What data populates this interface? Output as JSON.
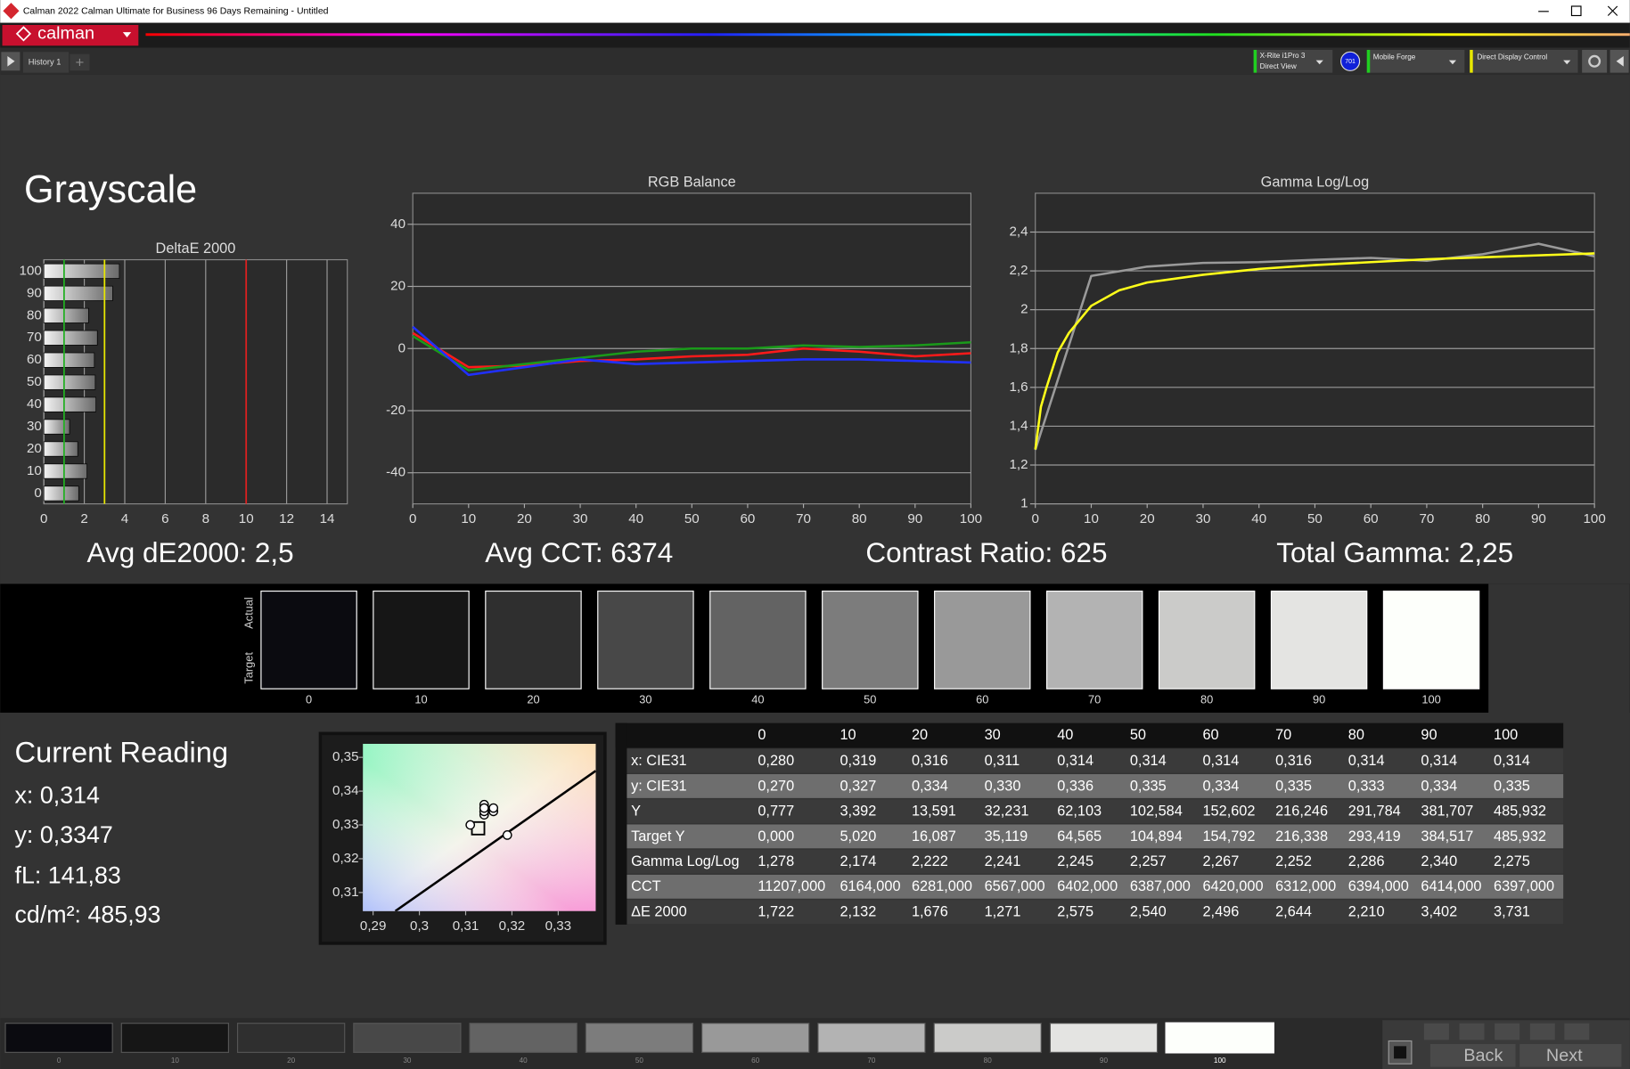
{
  "window": {
    "title": "Calman 2022 Calman Ultimate for Business 96 Days Remaining  - Untitled"
  },
  "toolbar": {
    "logo": "calman",
    "tab": "History 1",
    "meter": "X-Rite i1Pro 3",
    "meter_mode": "Direct View",
    "badge": "701",
    "source": "Mobile Forge",
    "display": "Direct Display Control"
  },
  "heading": "Grayscale",
  "chart_data": [
    {
      "type": "bar",
      "title": "DeltaE 2000",
      "categories": [
        "0",
        "10",
        "20",
        "30",
        "40",
        "50",
        "60",
        "70",
        "80",
        "90",
        "100"
      ],
      "values": [
        1.722,
        2.132,
        1.676,
        1.271,
        2.575,
        2.54,
        2.496,
        2.644,
        2.21,
        3.402,
        3.731
      ],
      "xlim": [
        0,
        15
      ],
      "xticks": [
        0,
        2,
        4,
        6,
        8,
        10,
        12,
        14
      ],
      "grid": true,
      "reference_lines": [
        {
          "value": 1,
          "color": "#22b022"
        },
        {
          "value": 3,
          "color": "#e8e800"
        },
        {
          "value": 10,
          "color": "#e02020"
        }
      ]
    },
    {
      "type": "line",
      "title": "RGB Balance",
      "x": [
        0,
        10,
        20,
        30,
        40,
        50,
        60,
        70,
        80,
        90,
        100
      ],
      "series": [
        {
          "color": "#ff1a1a",
          "values": [
            5,
            -6,
            -5.5,
            -4,
            -3.5,
            -2.5,
            -2,
            0,
            -1,
            -2.5,
            -1.5
          ]
        },
        {
          "color": "#1a9a1a",
          "values": [
            4,
            -7,
            -5,
            -3,
            -1,
            0,
            0,
            1,
            0.5,
            1,
            2
          ]
        },
        {
          "color": "#2030ff",
          "values": [
            7,
            -8.5,
            -6,
            -3.5,
            -5,
            -4.5,
            -4,
            -3.5,
            -3.5,
            -4,
            -4.5
          ]
        }
      ],
      "xlim": [
        0,
        100
      ],
      "xticks": [
        0,
        10,
        20,
        30,
        40,
        50,
        60,
        70,
        80,
        90,
        100
      ],
      "ylim": [
        -50,
        50
      ],
      "yticks": [
        -40,
        -20,
        0,
        20,
        40
      ],
      "grid": true
    },
    {
      "type": "line",
      "title": "Gamma Log/Log",
      "series": [
        {
          "color": "#9a9a9a",
          "x": [
            0,
            10,
            20,
            30,
            40,
            50,
            60,
            70,
            80,
            90,
            100
          ],
          "values": [
            1.278,
            2.174,
            2.222,
            2.241,
            2.245,
            2.257,
            2.267,
            2.252,
            2.286,
            2.34,
            2.275
          ]
        },
        {
          "color": "#ffff1a",
          "x": [
            0,
            1,
            2,
            4,
            6,
            8,
            10,
            15,
            20,
            30,
            40,
            50,
            60,
            70,
            80,
            90,
            100
          ],
          "values": [
            1.28,
            1.5,
            1.6,
            1.78,
            1.88,
            1.95,
            2.02,
            2.1,
            2.14,
            2.18,
            2.21,
            2.23,
            2.245,
            2.26,
            2.27,
            2.28,
            2.29
          ]
        }
      ],
      "xlim": [
        0,
        100
      ],
      "xticks": [
        0,
        10,
        20,
        30,
        40,
        50,
        60,
        70,
        80,
        90,
        100
      ],
      "ylim": [
        1,
        2.6
      ],
      "yticks": [
        1,
        {
          "value": 1.2,
          "label": "1,2"
        },
        {
          "value": 1.4,
          "label": "1,4"
        },
        {
          "value": 1.6,
          "label": "1,6"
        },
        {
          "value": 1.8,
          "label": "1,8"
        },
        2,
        {
          "value": 2.2,
          "label": "2,2"
        },
        {
          "value": 2.4,
          "label": "2,4"
        }
      ],
      "grid": true
    },
    {
      "type": "scatter",
      "xlim": [
        0.2878,
        0.3381
      ],
      "xticks": [
        {
          "value": 0.29,
          "label": "0,29"
        },
        {
          "value": 0.3,
          "label": "0,3"
        },
        {
          "value": 0.31,
          "label": "0,31"
        },
        {
          "value": 0.32,
          "label": "0,32"
        },
        {
          "value": 0.33,
          "label": "0,33"
        }
      ],
      "ylim": [
        0.3045,
        0.354
      ],
      "yticks": [
        {
          "value": 0.31,
          "label": "0,31"
        },
        {
          "value": 0.32,
          "label": "0,32"
        },
        {
          "value": 0.33,
          "label": "0,33"
        },
        {
          "value": 0.34,
          "label": "0,34"
        },
        {
          "value": 0.35,
          "label": "0,35"
        }
      ],
      "series": [
        {
          "marker": "line",
          "color": "#000000",
          "x": [
            0.2948,
            0.3381
          ],
          "values": [
            0.3045,
            0.346
          ]
        },
        {
          "marker": "square",
          "color": "#000000",
          "x": [
            0.3127
          ],
          "values": [
            0.329
          ]
        },
        {
          "marker": "circle",
          "color": "#ffffff",
          "x": [
            0.319,
            0.316,
            0.311,
            0.314,
            0.314,
            0.314,
            0.316,
            0.314,
            0.314,
            0.314
          ],
          "values": [
            0.327,
            0.334,
            0.33,
            0.336,
            0.335,
            0.334,
            0.335,
            0.333,
            0.334,
            0.335
          ]
        }
      ]
    }
  ],
  "metrics": [
    "Avg dE2000: 2,5",
    "Avg CCT: 6374",
    "Contrast Ratio: 625",
    "Total Gamma: 2,25"
  ],
  "swatches": {
    "actual_label": "Actual",
    "target_label": "Target",
    "labels": [
      "0",
      "10",
      "20",
      "30",
      "40",
      "50",
      "60",
      "70",
      "80",
      "90",
      "100"
    ],
    "colors": [
      "#0b0b10",
      "#161616",
      "#2f2f2f",
      "#484848",
      "#636363",
      "#7c7c7c",
      "#999999",
      "#b3b3b3",
      "#cbcbc9",
      "#e4e4e2",
      "#fdfffb"
    ]
  },
  "current_reading": {
    "title": "Current Reading",
    "lines": [
      "x: 0,314",
      "y: 0,3347",
      "fL: 141,83",
      "cd/m²: 485,93"
    ]
  },
  "table": {
    "header": [
      "0",
      "10",
      "20",
      "30",
      "40",
      "50",
      "60",
      "70",
      "80",
      "90",
      "100"
    ],
    "rows": [
      {
        "label": "x: CIE31",
        "cells": [
          "0,280",
          "0,319",
          "0,316",
          "0,311",
          "0,314",
          "0,314",
          "0,314",
          "0,316",
          "0,314",
          "0,314",
          "0,314"
        ]
      },
      {
        "label": "y: CIE31",
        "cells": [
          "0,270",
          "0,327",
          "0,334",
          "0,330",
          "0,336",
          "0,335",
          "0,334",
          "0,335",
          "0,333",
          "0,334",
          "0,335"
        ]
      },
      {
        "label": "Y",
        "cells": [
          "0,777",
          "3,392",
          "13,591",
          "32,231",
          "62,103",
          "102,584",
          "152,602",
          "216,246",
          "291,784",
          "381,707",
          "485,932"
        ]
      },
      {
        "label": "Target Y",
        "cells": [
          "0,000",
          "5,020",
          "16,087",
          "35,119",
          "64,565",
          "104,894",
          "154,792",
          "216,338",
          "293,419",
          "384,517",
          "485,932"
        ]
      },
      {
        "label": "Gamma Log/Log",
        "cells": [
          "1,278",
          "2,174",
          "2,222",
          "2,241",
          "2,245",
          "2,257",
          "2,267",
          "2,252",
          "2,286",
          "2,340",
          "2,275"
        ]
      },
      {
        "label": "CCT",
        "cells": [
          "11207,000",
          "6164,000",
          "6281,000",
          "6567,000",
          "6402,000",
          "6387,000",
          "6420,000",
          "6312,000",
          "6394,000",
          "6414,000",
          "6397,000"
        ]
      },
      {
        "label": "ΔE 2000",
        "cells": [
          "1,722",
          "2,132",
          "1,676",
          "1,271",
          "2,575",
          "2,540",
          "2,496",
          "2,644",
          "2,210",
          "3,402",
          "3,731"
        ]
      }
    ]
  },
  "footer": {
    "labels": [
      "0",
      "10",
      "20",
      "30",
      "40",
      "50",
      "60",
      "70",
      "80",
      "90",
      "100"
    ],
    "back": "Back",
    "next": "Next"
  }
}
